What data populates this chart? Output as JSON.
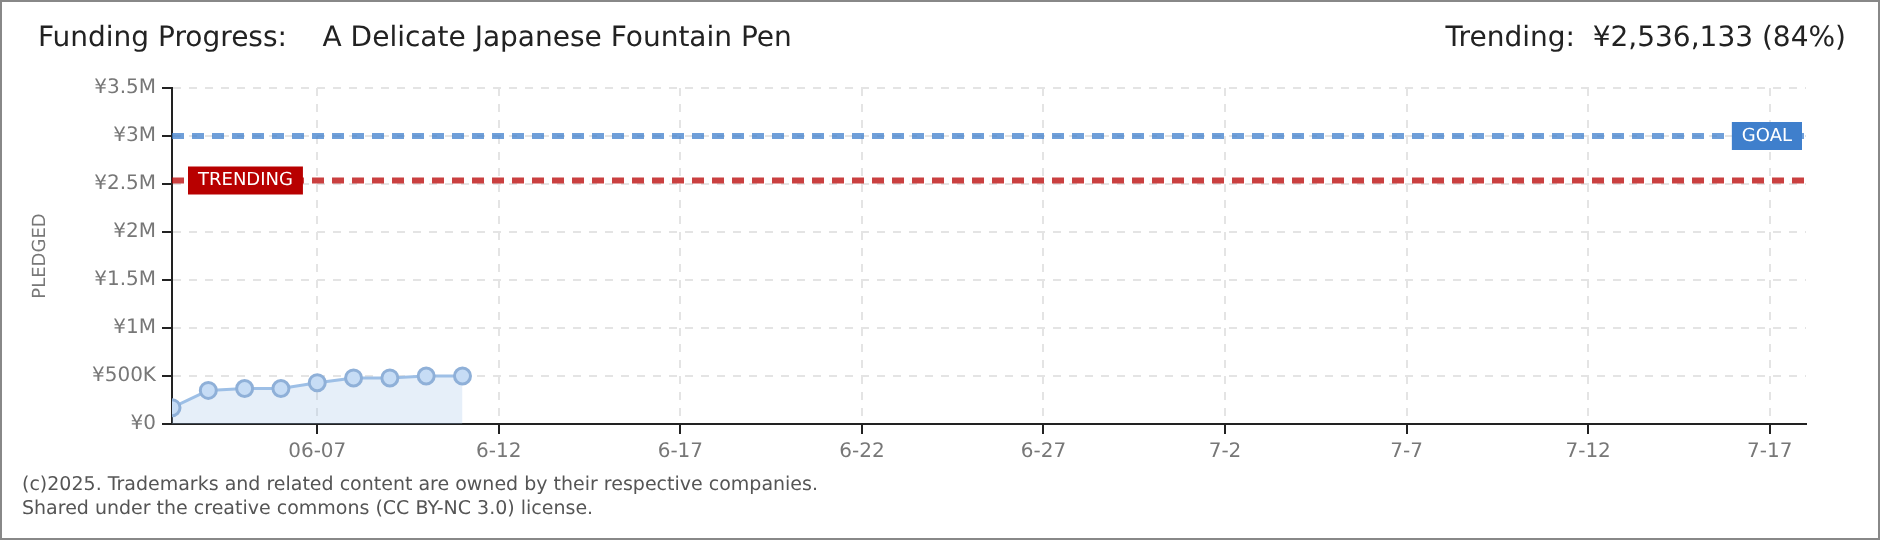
{
  "chart_data": {
    "type": "area",
    "title": "Funding Progress:    A Delicate Japanese Fountain Pen",
    "subtitle": "Trending:  ¥2,536,133 (84%)",
    "ylabel": "PLEDGED",
    "x": [
      "--06-03",
      "--06-04",
      "--06-05",
      "--06-06",
      "--06-07",
      "--06-08",
      "--06-09",
      "--06-10",
      "--06-11"
    ],
    "series": [
      {
        "color": "#9dbfe6",
        "values": [
          170000,
          350000,
          370000,
          370000,
          430000,
          480000,
          480000,
          500000,
          500000
        ]
      }
    ],
    "xlim": [
      "--06-03",
      "--07-18"
    ],
    "xticks": [
      {
        "value": "--06-07",
        "label": "06-07"
      },
      {
        "value": "--06-12",
        "label": "6-12"
      },
      {
        "value": "--06-17",
        "label": "6-17"
      },
      {
        "value": "--06-22",
        "label": "6-22"
      },
      {
        "value": "--06-27",
        "label": "6-27"
      },
      {
        "value": "--07-02",
        "label": "7-2"
      },
      {
        "value": "--07-07",
        "label": "7-7"
      },
      {
        "value": "--07-12",
        "label": "7-12"
      },
      {
        "value": "--07-17",
        "label": "7-17"
      }
    ],
    "ylim": [
      0,
      3500000
    ],
    "yticks": [
      {
        "value": 0,
        "label": "¥0"
      },
      {
        "value": 500000,
        "label": "¥500K"
      },
      {
        "value": 1000000,
        "label": "¥1M"
      },
      {
        "value": 1500000,
        "label": "¥1.5M"
      },
      {
        "value": 2000000,
        "label": "¥2M"
      },
      {
        "value": 2500000,
        "label": "¥2.5M"
      },
      {
        "value": 3000000,
        "label": "¥3M"
      },
      {
        "value": 3500000,
        "label": "¥3.5M"
      }
    ],
    "ref_lines": [
      {
        "axis": "y",
        "value": 3000000,
        "label": "GOAL",
        "color": "#3f7fcc"
      },
      {
        "axis": "y",
        "value": 2536133,
        "label": "TRENDING",
        "color": "#b80000"
      }
    ],
    "grid": true,
    "legend": false,
    "marker": "circle",
    "line_style": "solid",
    "annotations": [
      "(c)2025. Trademarks and related content are owned by their respective companies.",
      "Shared under the creative commons (CC BY-NC 3.0) license."
    ]
  }
}
